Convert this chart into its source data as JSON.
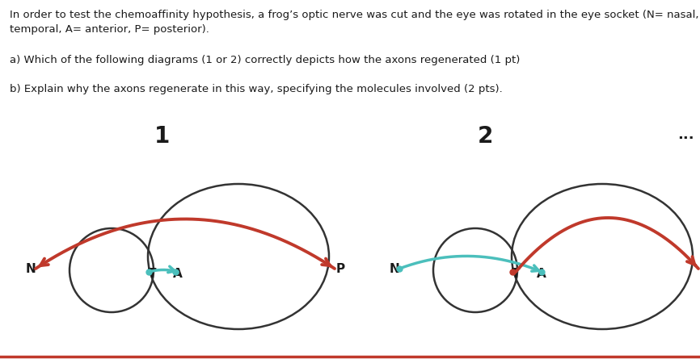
{
  "title_line1": "In order to test the chemoaffinity hypothesis, a frog’s optic nerve was cut and the eye was rotated in the eye socket (N= nasal, T=",
  "title_line2": "temporal, A= anterior, P= posterior).",
  "question_a": "a) Which of the following diagrams (1 or 2) correctly depicts how the axons regenerated (1 pt)",
  "question_b": "b) Explain why the axons regenerate in this way, specifying the molecules involved (2 pts).",
  "diag1_label": "1",
  "diag2_label": "2",
  "dots_label": "...",
  "red_color": "#c0392b",
  "cyan_color": "#4bbfbc",
  "circle_color": "#333333",
  "text_color": "#1a1a1a",
  "bg_color": "#ffffff",
  "bottom_line_color": "#c0392b"
}
